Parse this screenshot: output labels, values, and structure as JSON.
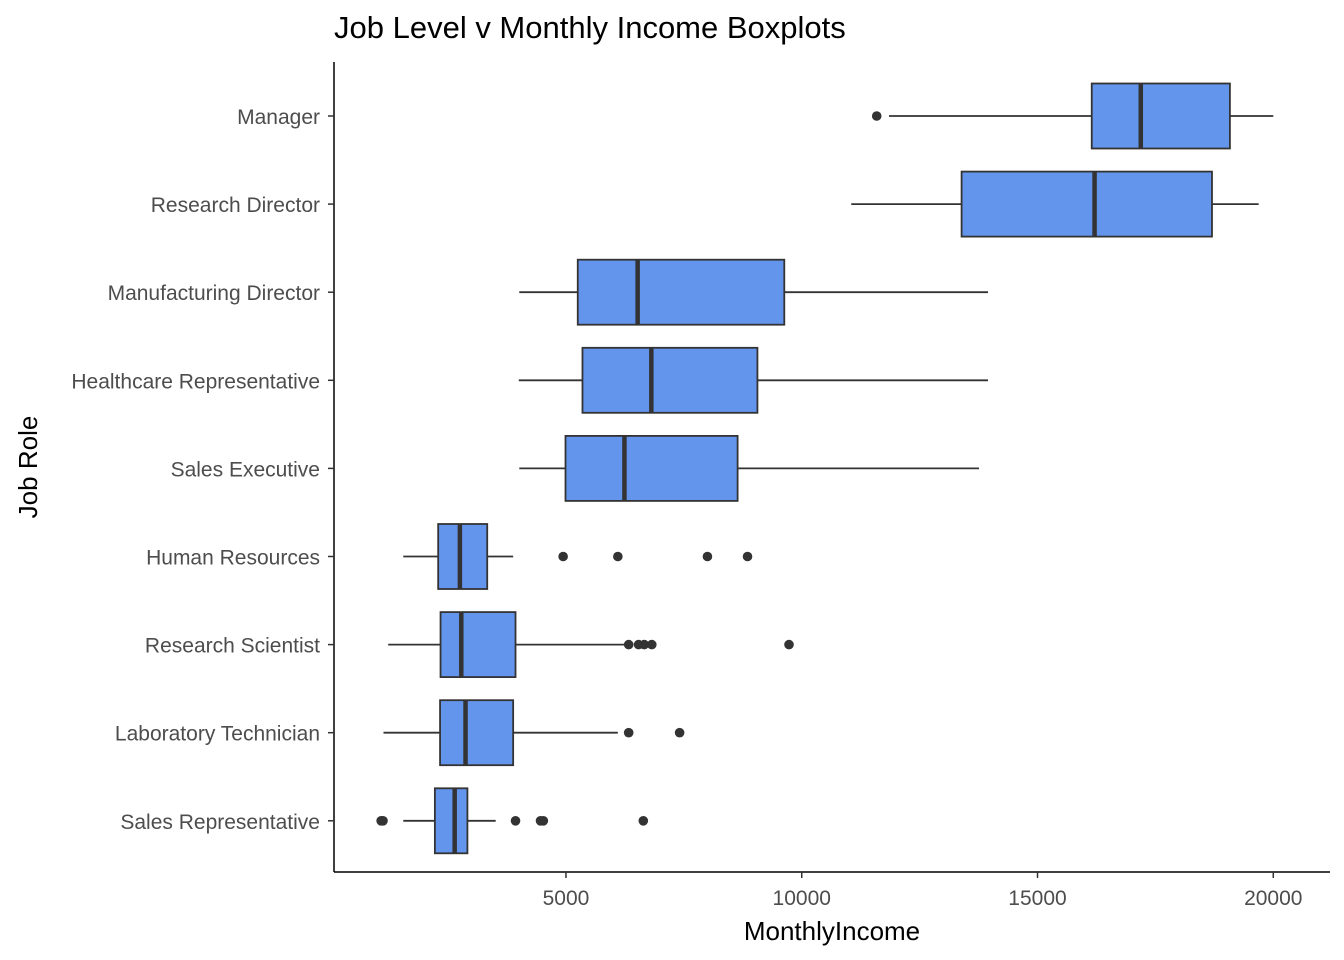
{
  "chart_data": {
    "type": "boxplot",
    "title": "Job Level v Monthly Income Boxplots",
    "xlabel": "MonthlyIncome",
    "ylabel": "Job Role",
    "xlim": [
      0,
      21000
    ],
    "x_ticks": [
      5000,
      10000,
      15000,
      20000
    ],
    "x_tick_labels": [
      "5000",
      "10000",
      "15000",
      "20000"
    ],
    "grid": false,
    "box_color": "#6495ED",
    "line_color": "#333333",
    "categories": [
      "Manager",
      "Research Director",
      "Manufacturing Director",
      "Healthcare Representative",
      "Sales Executive",
      "Human Resources",
      "Research Scientist",
      "Laboratory Technician",
      "Sales Representative"
    ],
    "boxes": [
      {
        "category": "Manager",
        "whisker_low": 11850,
        "q1": 16150,
        "median": 17190,
        "q3": 19080,
        "whisker_high": 20000,
        "outliers": [
          11590
        ]
      },
      {
        "category": "Research Director",
        "whisker_low": 11050,
        "q1": 13390,
        "median": 16210,
        "q3": 18700,
        "whisker_high": 19690,
        "outliers": []
      },
      {
        "category": "Manufacturing Director",
        "whisker_low": 4010,
        "q1": 5250,
        "median": 6520,
        "q3": 9630,
        "whisker_high": 13950,
        "outliers": []
      },
      {
        "category": "Healthcare Representative",
        "whisker_low": 4000,
        "q1": 5350,
        "median": 6810,
        "q3": 9060,
        "whisker_high": 13950,
        "outliers": []
      },
      {
        "category": "Sales Executive",
        "whisker_low": 4010,
        "q1": 4990,
        "median": 6240,
        "q3": 8640,
        "whisker_high": 13760,
        "outliers": []
      },
      {
        "category": "Human Resources",
        "whisker_low": 1550,
        "q1": 2290,
        "median": 2750,
        "q3": 3330,
        "whisker_high": 3880,
        "outliers": [
          4940,
          6100,
          8000,
          8850
        ]
      },
      {
        "category": "Research Scientist",
        "whisker_low": 1230,
        "q1": 2340,
        "median": 2780,
        "q3": 3930,
        "whisker_high": 6300,
        "outliers": [
          6330,
          6540,
          6660,
          6820,
          9730
        ]
      },
      {
        "category": "Laboratory Technician",
        "whisker_low": 1130,
        "q1": 2330,
        "median": 2870,
        "q3": 3880,
        "whisker_high": 6100,
        "outliers": [
          6330,
          7410
        ]
      },
      {
        "category": "Sales Representative",
        "whisker_low": 1550,
        "q1": 2220,
        "median": 2640,
        "q3": 2910,
        "whisker_high": 3510,
        "outliers": [
          1080,
          1120,
          3930,
          4460,
          4520,
          6640
        ]
      }
    ]
  }
}
